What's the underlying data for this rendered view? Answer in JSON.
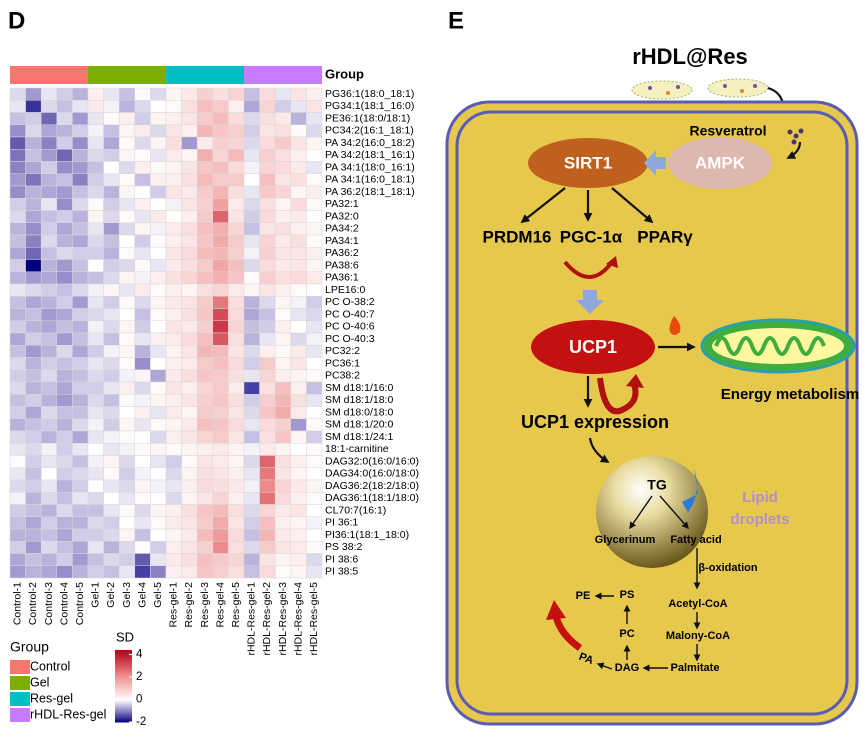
{
  "panels": [
    "D",
    "E"
  ],
  "chart_data": {
    "type": "heatmap",
    "group_label": "Group",
    "legend_title": "Group",
    "groups": [
      {
        "name": "Control",
        "color": "#f8766d"
      },
      {
        "name": "Gel",
        "color": "#7cae00"
      },
      {
        "name": "Res-gel",
        "color": "#00bfc4"
      },
      {
        "name": "rHDL-Res-gel",
        "color": "#c77cff"
      }
    ],
    "columns": [
      "Control-1",
      "Control-2",
      "Control-3",
      "Control-4",
      "Control-5",
      "Gel-1",
      "Gel-2",
      "Gel-3",
      "Gel-4",
      "Gel-5",
      "Res-gel-1",
      "Res-gel-2",
      "Res-gel-3",
      "Res-gel-4",
      "Res-gel-5",
      "rHDL-Res-gel-1",
      "rHDL-Res-gel-2",
      "rHDL-Res-gel-3",
      "rHDL-Res-gel-4",
      "rHDL-Res-gel-5"
    ],
    "rows": [
      "PG36:1(18:0_18:1)",
      "PG34:1(18:1_16:0)",
      "PE36:1(18:0/18:1)",
      "PC34:2(16:1_18:1)",
      "PA 34:2(16:0_18:2)",
      "PA 34:2(18:1_16:1)",
      "PA 34:1(18:0_16:1)",
      "PA 34:1(16:0_18:1)",
      "PA 36:2(18:1_18:1)",
      "PA32:1",
      "PA32:0",
      "PA34:2",
      "PA34:1",
      "PA36:2",
      "PA38:6",
      "PA36:1",
      "LPE16:0",
      "PC O-38:2",
      "PC O-40:7",
      "PC O-40:6",
      "PC O-40:3",
      "PC32:2",
      "PC36:1",
      "PC38:2",
      "SM d18:1/16:0",
      "SM d18:1/18:0",
      "SM d18:0/18:0",
      "SM d18:1/20:0",
      "SM d18:1/24:1",
      "18:1-carnitine",
      "DAG32:0(16:0/16:0)",
      "DAG34:0(16:0/18:0)",
      "DAG36:2(18:2/18:0)",
      "DAG36:1(18:1/18:0)",
      "CL70:7(16:1)",
      "PI 36:1",
      "PI36:1(18:1_18:0)",
      "PS 38:2",
      "PI 38:6",
      "PI 38:5"
    ],
    "values": [
      [
        -0.3,
        -0.8,
        -0.2,
        -0.4,
        -0.6,
        0.3,
        -0.2,
        -0.5,
        0.1,
        -0.3,
        0.2,
        0.4,
        0.9,
        0.6,
        0.8,
        -0.5,
        0.7,
        -0.2,
        0.5,
        0.3
      ],
      [
        -0.2,
        -1.6,
        -0.3,
        -0.5,
        -0.2,
        0.4,
        -0.1,
        -0.6,
        -0.3,
        0.0,
        0.1,
        0.6,
        1.2,
        1.0,
        0.3,
        -0.7,
        0.8,
        -0.4,
        -0.2,
        0.5
      ],
      [
        -0.5,
        -0.4,
        -1.2,
        -0.3,
        -0.8,
        -0.2,
        0.1,
        0.3,
        -0.4,
        0.2,
        0.3,
        0.5,
        1.0,
        1.3,
        0.7,
        -0.3,
        0.6,
        0.4,
        -0.6,
        -0.2
      ],
      [
        -0.9,
        -0.3,
        -0.7,
        -0.6,
        -0.4,
        -0.1,
        -0.5,
        0.2,
        0.4,
        -0.3,
        0.5,
        0.3,
        1.4,
        1.1,
        0.9,
        -0.4,
        0.5,
        0.6,
        0.1,
        -0.3
      ],
      [
        -1.3,
        -0.6,
        -1.0,
        -0.4,
        -0.9,
        -0.2,
        -0.7,
        0.1,
        -0.3,
        0.2,
        0.6,
        -0.8,
        0.4,
        0.9,
        0.8,
        -0.3,
        0.7,
        1.0,
        0.5,
        0.2
      ],
      [
        -1.1,
        -0.5,
        -0.8,
        -1.2,
        -0.6,
        -0.3,
        -0.4,
        0.2,
        0.1,
        -0.2,
        0.4,
        0.2,
        1.5,
        0.8,
        1.3,
        -0.2,
        0.9,
        0.6,
        0.3,
        0.0
      ],
      [
        -1.0,
        -0.7,
        -0.4,
        -0.9,
        -0.8,
        -0.5,
        0.0,
        -0.3,
        0.3,
        0.1,
        0.2,
        0.5,
        1.1,
        1.2,
        0.7,
        -0.1,
        0.8,
        0.7,
        0.4,
        -0.2
      ],
      [
        -0.8,
        -1.1,
        -0.6,
        -0.5,
        -1.0,
        -0.4,
        -0.2,
        0.1,
        -0.5,
        0.3,
        0.3,
        0.6,
        1.3,
        1.0,
        1.0,
        0.0,
        1.2,
        0.5,
        0.6,
        0.1
      ],
      [
        -0.9,
        -0.6,
        -0.7,
        -0.8,
        -0.5,
        -0.3,
        -0.6,
        0.2,
        0.0,
        -0.4,
        0.5,
        0.4,
        1.0,
        1.4,
        0.6,
        -0.2,
        1.0,
        0.8,
        0.2,
        0.3
      ],
      [
        -0.4,
        -0.6,
        -0.2,
        -0.9,
        -0.3,
        0.1,
        -0.4,
        -0.2,
        0.3,
        0.0,
        -0.1,
        0.5,
        0.9,
        1.8,
        0.4,
        -0.3,
        0.6,
        0.2,
        0.7,
        0.1
      ],
      [
        -0.3,
        -0.7,
        -0.5,
        -0.4,
        -0.6,
        0.2,
        -0.3,
        0.1,
        -0.2,
        0.4,
        0.0,
        0.3,
        1.0,
        2.8,
        0.5,
        -0.4,
        0.7,
        0.3,
        0.4,
        0.0
      ],
      [
        -0.6,
        -0.9,
        -0.4,
        -0.7,
        -0.5,
        -0.2,
        -0.8,
        -0.3,
        0.2,
        -0.1,
        0.4,
        0.6,
        1.2,
        1.5,
        0.8,
        -0.5,
        0.5,
        0.6,
        0.3,
        0.2
      ],
      [
        -0.5,
        -1.0,
        -0.3,
        -0.6,
        -0.7,
        -0.3,
        -0.5,
        0.0,
        -0.4,
        0.1,
        0.3,
        0.5,
        1.1,
        1.6,
        1.0,
        -0.2,
        0.8,
        0.4,
        0.6,
        0.1
      ],
      [
        -0.7,
        -1.2,
        -0.5,
        -0.3,
        -0.4,
        -0.4,
        -0.6,
        0.1,
        -0.2,
        0.0,
        0.5,
        0.7,
        1.3,
        1.4,
        0.9,
        -0.1,
        0.9,
        0.5,
        0.5,
        0.3
      ],
      [
        -0.4,
        -2.0,
        -0.6,
        -0.8,
        -0.5,
        0.0,
        -0.4,
        -0.3,
        0.1,
        -0.2,
        0.4,
        0.6,
        1.0,
        1.7,
        1.2,
        -0.3,
        0.7,
        0.4,
        0.5,
        0.2
      ],
      [
        -0.6,
        -0.8,
        -0.7,
        -0.9,
        -0.6,
        -0.5,
        -0.3,
        0.2,
        -0.1,
        0.3,
        0.6,
        0.8,
        1.2,
        1.5,
        1.1,
        0.1,
        0.9,
        0.6,
        0.7,
        0.4
      ],
      [
        -0.2,
        -0.3,
        -0.4,
        -0.5,
        -0.3,
        -0.1,
        0.2,
        -0.2,
        0.4,
        0.1,
        0.3,
        0.2,
        0.6,
        0.8,
        0.4,
        0.2,
        0.5,
        0.3,
        0.1,
        0.0
      ],
      [
        -0.5,
        -0.7,
        -0.6,
        -0.4,
        -0.8,
        -0.2,
        -0.4,
        0.1,
        -0.3,
        0.2,
        0.4,
        0.5,
        1.0,
        2.5,
        0.6,
        -0.6,
        -0.3,
        0.2,
        -0.1,
        -0.4
      ],
      [
        -0.6,
        -0.5,
        -0.8,
        -0.7,
        -0.4,
        -0.3,
        -0.2,
        0.0,
        -0.5,
        0.1,
        0.3,
        0.6,
        1.1,
        3.2,
        0.7,
        -0.7,
        -0.5,
        0.1,
        -0.2,
        -0.3
      ],
      [
        -0.4,
        -0.6,
        -0.7,
        -0.5,
        -0.6,
        -0.1,
        -0.3,
        0.2,
        -0.4,
        0.0,
        0.5,
        0.4,
        0.9,
        3.5,
        0.8,
        -0.5,
        -0.4,
        0.3,
        0.0,
        -0.2
      ],
      [
        -0.7,
        -0.4,
        -0.5,
        -0.8,
        -0.5,
        -0.2,
        -0.5,
        0.1,
        -0.2,
        0.3,
        0.4,
        0.7,
        1.2,
        3.0,
        0.6,
        -0.6,
        -0.2,
        0.2,
        -0.3,
        -0.1
      ],
      [
        -0.5,
        -0.8,
        -0.6,
        -0.3,
        -0.7,
        -0.4,
        -0.1,
        0.2,
        -0.6,
        -0.2,
        0.2,
        0.5,
        1.4,
        1.3,
        0.5,
        -0.3,
        0.3,
        0.1,
        0.4,
        -0.2
      ],
      [
        -0.3,
        -0.6,
        -0.4,
        -0.5,
        -0.4,
        -0.2,
        -0.3,
        0.1,
        -0.9,
        0.0,
        0.3,
        0.4,
        1.0,
        1.2,
        0.7,
        -0.4,
        1.0,
        0.2,
        0.5,
        0.0
      ],
      [
        -0.4,
        -0.5,
        -0.3,
        -0.6,
        -0.5,
        -0.3,
        -0.4,
        -0.1,
        0.2,
        -0.7,
        0.4,
        0.6,
        1.1,
        1.0,
        0.6,
        -0.2,
        0.8,
        0.3,
        0.2,
        0.1
      ],
      [
        -0.3,
        -0.6,
        -0.5,
        -0.7,
        -0.4,
        -0.4,
        -0.2,
        0.3,
        -0.3,
        0.1,
        0.5,
        0.3,
        0.8,
        1.0,
        0.4,
        -1.5,
        0.6,
        1.2,
        0.3,
        -0.5
      ],
      [
        -0.5,
        -0.4,
        -0.6,
        -0.8,
        -0.6,
        -0.3,
        -0.5,
        0.1,
        -0.1,
        0.2,
        0.3,
        0.5,
        0.9,
        1.1,
        0.6,
        -0.4,
        0.9,
        1.4,
        0.6,
        -0.2
      ],
      [
        -0.4,
        -0.7,
        -0.3,
        -0.5,
        -0.5,
        -0.2,
        -0.3,
        0.0,
        0.3,
        -0.2,
        0.4,
        0.2,
        1.0,
        0.9,
        0.5,
        -0.3,
        1.1,
        1.6,
        0.4,
        0.0
      ],
      [
        -0.6,
        -0.5,
        -0.4,
        -0.6,
        -0.3,
        -0.1,
        -0.4,
        0.2,
        -0.2,
        0.1,
        0.2,
        0.4,
        1.2,
        1.1,
        0.7,
        -0.2,
        0.7,
        0.9,
        -0.8,
        0.1
      ],
      [
        -0.3,
        -0.4,
        -0.6,
        -0.4,
        -0.7,
        -0.2,
        -0.1,
        0.1,
        0.0,
        -0.3,
        0.3,
        0.5,
        0.8,
        1.0,
        0.5,
        -0.5,
        0.6,
        1.1,
        0.2,
        -0.4
      ],
      [
        -0.2,
        -0.3,
        -0.1,
        -0.4,
        -0.2,
        0.0,
        -0.2,
        -0.1,
        0.1,
        0.2,
        0.1,
        0.2,
        0.3,
        0.4,
        0.2,
        -0.1,
        0.4,
        0.2,
        0.0,
        0.1
      ],
      [
        0.1,
        -0.4,
        -0.2,
        -0.3,
        -0.5,
        -0.1,
        0.2,
        -0.3,
        0.0,
        -0.2,
        -0.4,
        0.1,
        0.5,
        0.4,
        0.2,
        -0.3,
        2.8,
        0.6,
        0.3,
        0.1
      ],
      [
        -0.2,
        -0.5,
        0.0,
        -0.4,
        -0.3,
        -0.2,
        0.1,
        -0.4,
        -0.1,
        0.0,
        -0.3,
        0.2,
        0.6,
        0.5,
        0.3,
        -0.2,
        2.5,
        0.5,
        0.2,
        0.0
      ],
      [
        -0.3,
        -0.4,
        -0.2,
        -0.6,
        -0.4,
        0.0,
        -0.2,
        -0.3,
        0.2,
        -0.1,
        -0.2,
        0.3,
        0.7,
        0.6,
        0.4,
        -0.1,
        2.2,
        0.8,
        0.4,
        0.2
      ],
      [
        -0.1,
        -0.6,
        -0.3,
        -0.5,
        -0.2,
        -0.3,
        0.0,
        -0.2,
        0.1,
        0.0,
        -0.3,
        0.2,
        0.5,
        0.8,
        0.3,
        -0.2,
        2.6,
        0.7,
        0.3,
        0.1
      ],
      [
        -0.4,
        -0.5,
        -0.6,
        -0.3,
        -0.5,
        -0.5,
        -0.2,
        0.1,
        -0.3,
        0.2,
        0.3,
        0.6,
        1.1,
        1.3,
        0.6,
        -0.3,
        0.8,
        0.4,
        0.5,
        0.0
      ],
      [
        -0.5,
        -0.7,
        -0.4,
        -0.6,
        -0.6,
        -0.3,
        -0.4,
        0.0,
        -0.2,
        0.1,
        0.4,
        0.5,
        1.0,
        1.6,
        0.5,
        -0.4,
        1.2,
        0.3,
        0.2,
        -0.1
      ],
      [
        -0.6,
        -0.6,
        -0.5,
        -0.7,
        -0.4,
        -0.4,
        -0.3,
        0.2,
        -0.5,
        0.0,
        0.2,
        0.4,
        1.3,
        1.9,
        0.7,
        -0.5,
        1.4,
        0.4,
        0.3,
        0.0
      ],
      [
        -0.4,
        -0.8,
        -0.3,
        -0.5,
        -0.7,
        -0.2,
        -0.6,
        -0.3,
        0.1,
        -0.4,
        0.3,
        0.5,
        0.9,
        2.2,
        0.6,
        -0.3,
        1.0,
        0.5,
        0.4,
        0.1
      ],
      [
        -0.7,
        -0.5,
        -0.6,
        -0.4,
        -0.8,
        -0.5,
        -0.3,
        -0.4,
        -1.3,
        -0.2,
        0.4,
        0.6,
        1.2,
        1.0,
        0.8,
        -0.6,
        0.5,
        0.2,
        0.3,
        -0.3
      ],
      [
        -0.8,
        -0.6,
        -0.7,
        -0.9,
        -0.6,
        -0.4,
        -0.5,
        -0.2,
        -1.5,
        -1.0,
        0.3,
        0.4,
        1.1,
        0.9,
        0.6,
        -0.5,
        0.7,
        0.1,
        0.2,
        -0.2
      ]
    ],
    "colorbar_title": "SD",
    "clim": [
      -2,
      4.4
    ],
    "cticks": [
      4,
      2,
      0,
      -2
    ],
    "colormap": [
      "#00007f",
      "#8b80c4",
      "#ffffff",
      "#ee8a8a",
      "#b2001a"
    ]
  },
  "diagram": {
    "nanoparticle": "rHDL@Res",
    "resveratrol": "Resveratrol",
    "ampk": "AMPK",
    "sirt1": "SIRT1",
    "targets": [
      "PRDM16",
      "PGC-1α",
      "PPARγ"
    ],
    "ucp1": "UCP1",
    "energy": "Energy metabolism",
    "expression": "UCP1 expression",
    "tg": "TG",
    "glycerinum": "Glycerinum",
    "fatty_acid": "Fatty acid",
    "lipid": [
      "Lipid",
      "droplets"
    ],
    "beta_oxidation": "β-oxidation",
    "acetyl": "Acetyl-CoA",
    "malony": "Malony-CoA",
    "palmitate": "Palmitate",
    "dag": "DAG",
    "pc": "PC",
    "ps": "PS",
    "pe": "PE",
    "pa": "PA"
  }
}
